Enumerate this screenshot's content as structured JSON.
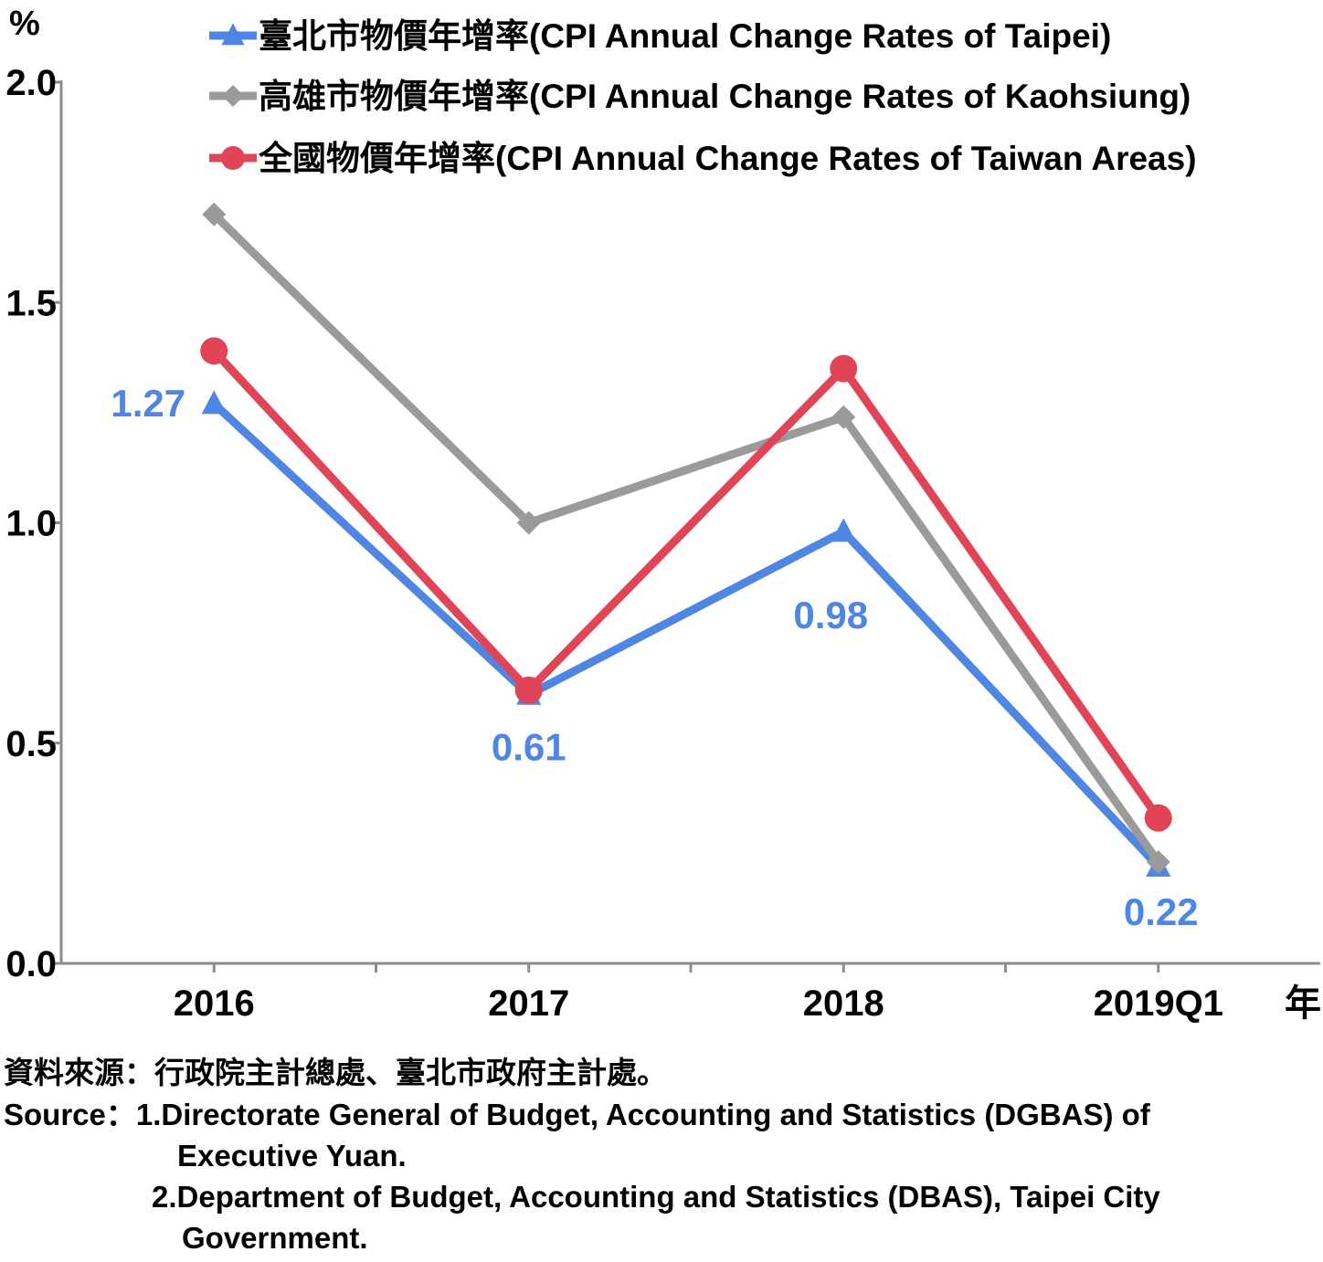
{
  "chart_data": {
    "type": "line",
    "y_unit": "%",
    "x_unit": "年",
    "categories": [
      "2016",
      "2017",
      "2018",
      "2019Q1"
    ],
    "ylim": [
      0.0,
      2.0
    ],
    "yticks": [
      "0.0",
      "0.5",
      "1.0",
      "1.5",
      "2.0"
    ],
    "grid": false,
    "legend_position": "top-right",
    "series": [
      {
        "name": "臺北市物價年增率(CPI Annual Change Rates of Taipei)",
        "values": [
          1.27,
          0.61,
          0.98,
          0.22
        ],
        "color": "#4F86E4",
        "marker": "triangle",
        "data_labels": [
          "1.27",
          "0.61",
          "0.98",
          "0.22"
        ]
      },
      {
        "name": "高雄市物價年增率(CPI Annual Change Rates of Kaohsiung)",
        "values": [
          1.7,
          1.0,
          1.24,
          0.23
        ],
        "color": "#9A9A9A",
        "marker": "diamond"
      },
      {
        "name": "全國物價年增率(CPI Annual Change Rates of Taiwan Areas)",
        "values": [
          1.39,
          0.62,
          1.35,
          0.33
        ],
        "color": "#E14456",
        "marker": "circle"
      }
    ]
  },
  "source": {
    "line1": "資料來源：行政院主計總處、臺北市政府主計處。",
    "line2": "Source：1.Directorate General of Budget, Accounting and Statistics (DGBAS) of",
    "line3": "Executive Yuan.",
    "line4": "2.Department of Budget, Accounting and Statistics (DBAS), Taipei City",
    "line5": "Government."
  }
}
